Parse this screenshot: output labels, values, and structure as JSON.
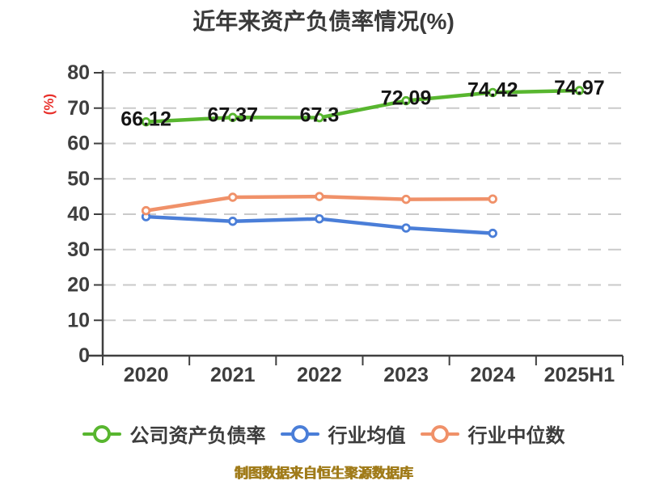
{
  "title": "近年来资产负债率情况(%)",
  "y_axis_label": "(%)",
  "source_note": "制图数据来自恒生聚源数据库",
  "colors": {
    "background": "#ffffff",
    "title_text": "#3a3a3a",
    "axis_text": "#3e3e3e",
    "axis_line": "#3f3f3f",
    "grid_line": "#cacaca",
    "data_label_text": "#151515",
    "y_axis_label_text": "#e8302b",
    "source_text": "#a17c1b",
    "series_company": "#58b62f",
    "series_industry_mean": "#4a7ed8",
    "series_industry_median": "#f09169"
  },
  "chart_data": {
    "type": "line",
    "title": "近年来资产负债率情况(%)",
    "categories": [
      "2020",
      "2021",
      "2022",
      "2023",
      "2024",
      "2025H1"
    ],
    "series": [
      {
        "name": "公司资产负债率",
        "color": "#58b62f",
        "values": [
          66.12,
          67.37,
          67.3,
          72.09,
          74.42,
          74.97
        ],
        "labels_shown": true
      },
      {
        "name": "行业均值",
        "color": "#4a7ed8",
        "values": [
          39.3,
          38.0,
          38.7,
          36.1,
          34.6,
          null
        ],
        "labels_shown": false
      },
      {
        "name": "行业中位数",
        "color": "#f09169",
        "values": [
          41.0,
          44.8,
          45.0,
          44.2,
          44.3,
          null
        ],
        "labels_shown": false
      }
    ],
    "ylabel": "(%)",
    "ylim": [
      0,
      80
    ],
    "ytick_step": 10,
    "grid": "horizontal-dashed",
    "legend_position": "bottom",
    "marker": "circle-white-fill"
  }
}
